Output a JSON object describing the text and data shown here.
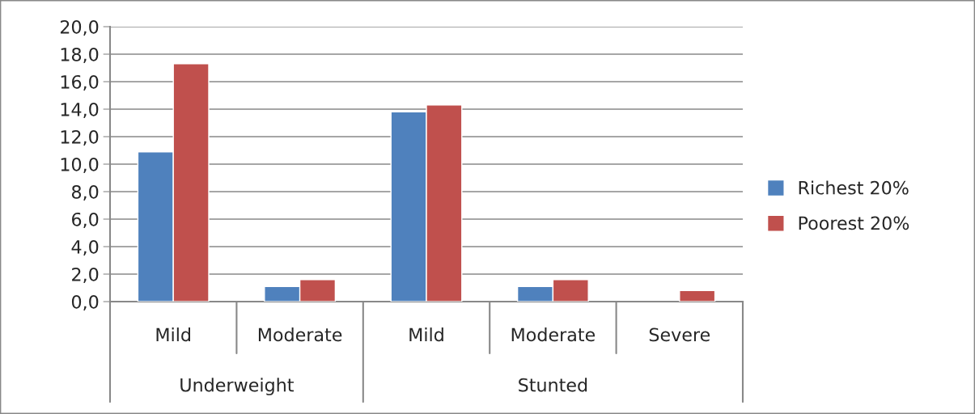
{
  "chart_data": {
    "type": "bar",
    "categories": [
      "Mild",
      "Moderate",
      "Mild",
      "Moderate",
      "Severe"
    ],
    "series": [
      {
        "name": "Richest 20%",
        "color": "#4f81bd",
        "values": [
          10.9,
          1.1,
          13.8,
          1.1,
          null
        ]
      },
      {
        "name": "Poorest 20%",
        "color": "#c0504d",
        "values": [
          17.3,
          1.6,
          14.3,
          1.6,
          0.8
        ]
      }
    ],
    "annotations": [
      "Underweight",
      "Stunted"
    ],
    "ylim": [
      0,
      20
    ],
    "yticks": [
      {
        "value": 0,
        "label": "0,0"
      },
      {
        "value": 2,
        "label": "2,0"
      },
      {
        "value": 4,
        "label": "4,0"
      },
      {
        "value": 6,
        "label": "6,0"
      },
      {
        "value": 8,
        "label": "8,0"
      },
      {
        "value": 10,
        "label": "10,0"
      },
      {
        "value": 12,
        "label": "12,0"
      },
      {
        "value": 14,
        "label": "14,0"
      },
      {
        "value": 16,
        "label": "16,0"
      },
      {
        "value": 18,
        "label": "18,0"
      },
      {
        "value": 20,
        "label": "20,0"
      }
    ],
    "grid": "y",
    "legend": "right"
  }
}
